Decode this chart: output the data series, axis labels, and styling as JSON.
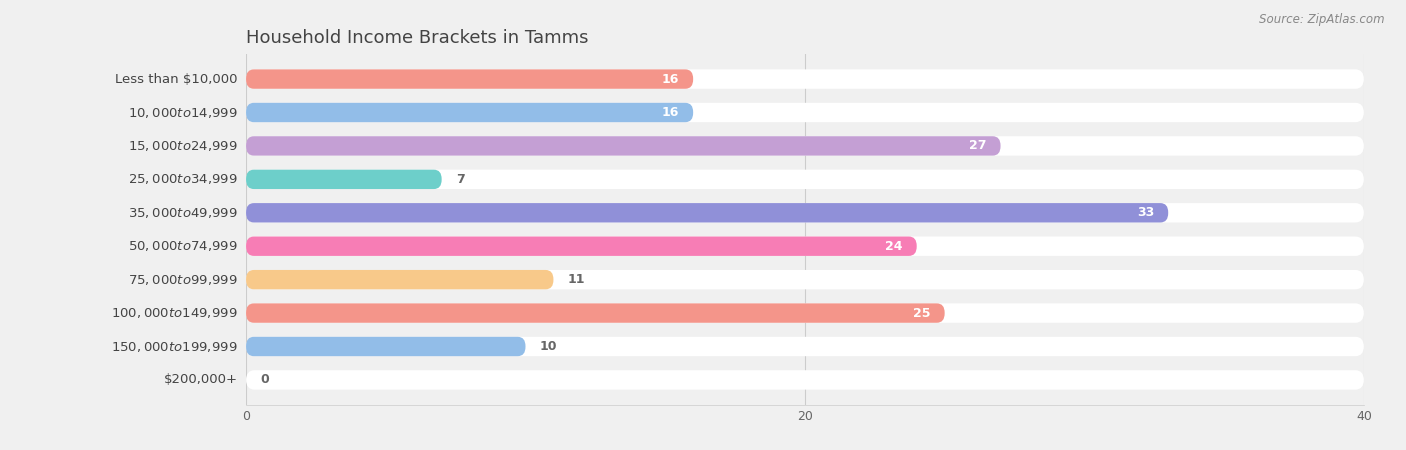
{
  "title": "Household Income Brackets in Tamms",
  "source": "Source: ZipAtlas.com",
  "categories": [
    "Less than $10,000",
    "$10,000 to $14,999",
    "$15,000 to $24,999",
    "$25,000 to $34,999",
    "$35,000 to $49,999",
    "$50,000 to $74,999",
    "$75,000 to $99,999",
    "$100,000 to $149,999",
    "$150,000 to $199,999",
    "$200,000+"
  ],
  "values": [
    16,
    16,
    27,
    7,
    33,
    24,
    11,
    25,
    10,
    0
  ],
  "bar_colors": [
    "#f4958a",
    "#92bde8",
    "#c49fd4",
    "#6dcfca",
    "#9090d8",
    "#f77db5",
    "#f8c98a",
    "#f4958a",
    "#92bde8",
    "#c9b8d8"
  ],
  "xlim": [
    0,
    40
  ],
  "background_color": "#f0f0f0",
  "bar_background_color": "#ffffff",
  "title_color": "#444444",
  "label_color": "#444444",
  "value_color_inside": "#ffffff",
  "value_color_outside": "#666666",
  "title_fontsize": 13,
  "label_fontsize": 9.5,
  "value_fontsize": 9,
  "source_fontsize": 8.5,
  "tick_fontsize": 9
}
